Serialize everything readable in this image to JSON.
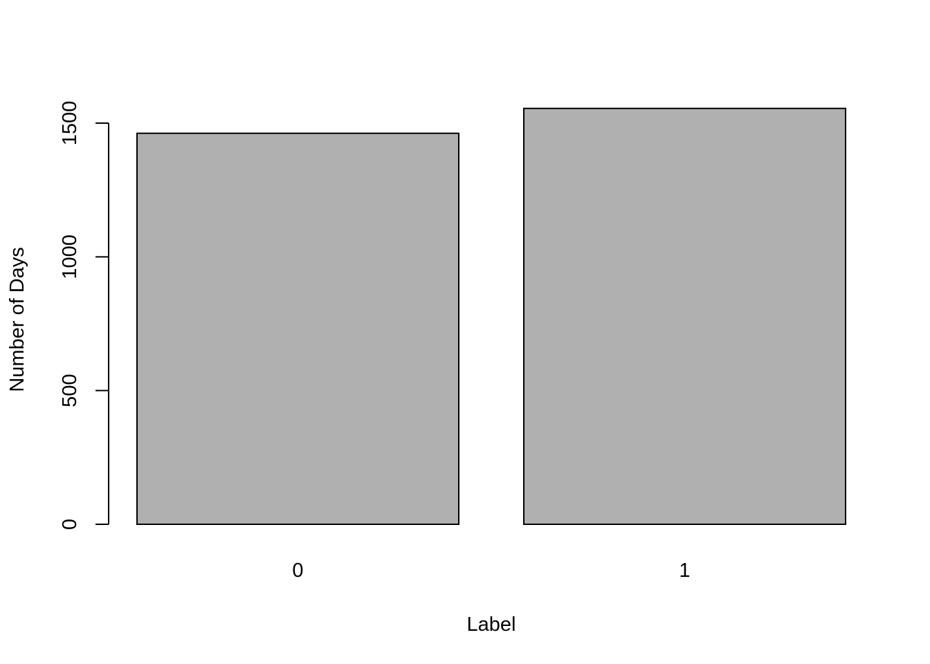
{
  "chart_data": {
    "type": "bar",
    "title": "",
    "xlabel": "Label",
    "ylabel": "Number of Days",
    "categories": [
      "0",
      "1"
    ],
    "values": [
      1462,
      1555
    ],
    "ylim": [
      0,
      1500
    ],
    "yticks": [
      0,
      500,
      1000,
      1500
    ],
    "grid": false,
    "legend": "none",
    "colors": {
      "bar_fill": "#b0b0b0",
      "bar_stroke": "#000000",
      "axis": "#000000",
      "background": "#ffffff"
    }
  }
}
